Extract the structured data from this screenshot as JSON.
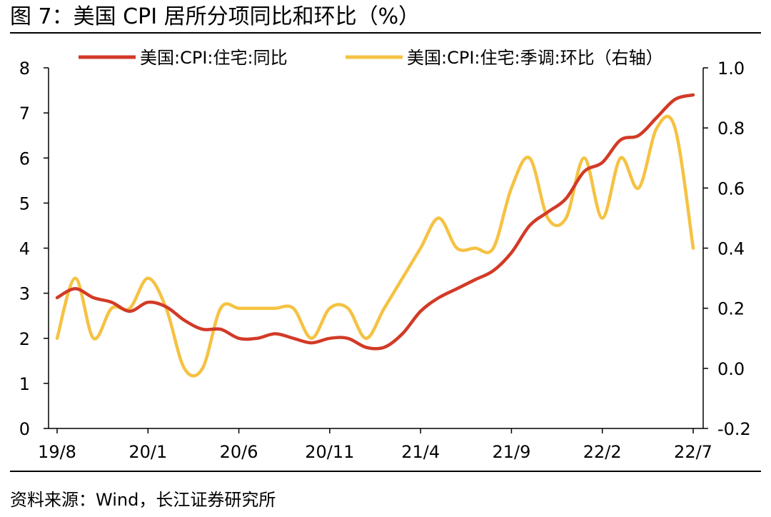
{
  "figure": {
    "title": "图 7：美国 CPI 居所分项同比和环比（%）",
    "source": "资料来源：Wind，长江证券研究所"
  },
  "chart_data": {
    "type": "line",
    "x": [
      "19/8",
      "19/9",
      "19/10",
      "19/11",
      "19/12",
      "20/1",
      "20/2",
      "20/3",
      "20/4",
      "20/5",
      "20/6",
      "20/7",
      "20/8",
      "20/9",
      "20/10",
      "20/11",
      "20/12",
      "21/1",
      "21/2",
      "21/3",
      "21/4",
      "21/5",
      "21/6",
      "21/7",
      "21/8",
      "21/9",
      "21/10",
      "21/11",
      "21/12",
      "22/1",
      "22/2",
      "22/3",
      "22/4",
      "22/5",
      "22/6",
      "22/7"
    ],
    "x_tick_labels": [
      "19/8",
      "20/1",
      "20/6",
      "20/11",
      "21/4",
      "21/9",
      "22/2",
      "22/7"
    ],
    "left_axis": {
      "ylim": [
        0,
        8
      ],
      "ticks": [
        "0",
        "1",
        "2",
        "3",
        "4",
        "5",
        "6",
        "7",
        "8"
      ]
    },
    "right_axis": {
      "ylim": [
        -0.2,
        1.0
      ],
      "ticks": [
        "-0.2",
        "0.0",
        "0.2",
        "0.4",
        "0.6",
        "0.8",
        "1.0"
      ]
    },
    "series": [
      {
        "name": "美国:CPI:住宅:同比",
        "axis": "left",
        "color": "#d23a27",
        "values": [
          2.9,
          3.1,
          2.9,
          2.8,
          2.6,
          2.8,
          2.7,
          2.4,
          2.2,
          2.2,
          2.0,
          2.0,
          2.1,
          2.0,
          1.9,
          2.0,
          2.0,
          1.8,
          1.8,
          2.1,
          2.6,
          2.9,
          3.1,
          3.3,
          3.5,
          3.9,
          4.5,
          4.8,
          5.1,
          5.7,
          5.9,
          6.4,
          6.5,
          6.9,
          7.3,
          7.4
        ]
      },
      {
        "name": "美国:CPI:住宅:季调:环比（右轴）",
        "axis": "right",
        "color": "#f5c242",
        "values": [
          0.1,
          0.3,
          0.1,
          0.2,
          0.2,
          0.3,
          0.2,
          0.0,
          0.0,
          0.2,
          0.2,
          0.2,
          0.2,
          0.2,
          0.1,
          0.2,
          0.2,
          0.1,
          0.2,
          0.3,
          0.4,
          0.5,
          0.4,
          0.4,
          0.4,
          0.6,
          0.7,
          0.5,
          0.5,
          0.7,
          0.5,
          0.7,
          0.6,
          0.8,
          0.8,
          0.4
        ]
      }
    ],
    "legend_placement": "top",
    "grid": false
  }
}
